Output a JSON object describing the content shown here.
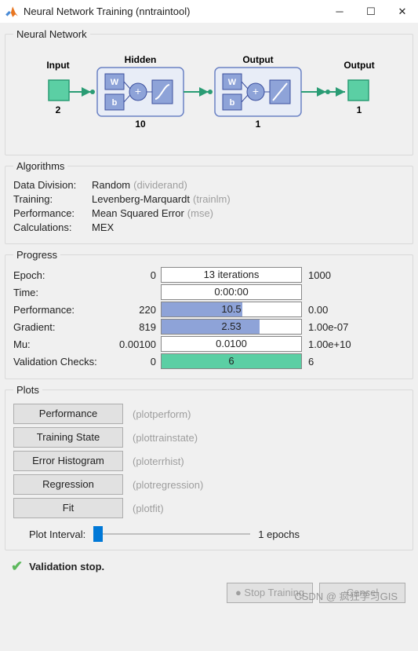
{
  "window": {
    "title": "Neural Network Training (nntraintool)"
  },
  "network": {
    "legend": "Neural Network",
    "input_label": "Input",
    "input_size": "2",
    "hidden_label": "Hidden",
    "hidden_size": "10",
    "output_layer_label": "Output",
    "output_layer_size": "1",
    "output_label": "Output",
    "output_size": "1",
    "w_label": "W",
    "b_label": "b",
    "colors": {
      "box_fill": "#e8edf7",
      "box_stroke": "#6b82c4",
      "block_fill": "#8ea3d8",
      "block_stroke": "#3b4f9e",
      "input_fill": "#5bcfa4",
      "input_stroke": "#2a9c74",
      "arrow": "#2a9c74"
    }
  },
  "algorithms": {
    "legend": "Algorithms",
    "rows": [
      {
        "label": "Data Division:",
        "value": "Random",
        "hint": "(dividerand)"
      },
      {
        "label": "Training:",
        "value": "Levenberg-Marquardt",
        "hint": "(trainlm)"
      },
      {
        "label": "Performance:",
        "value": "Mean Squared Error",
        "hint": "(mse)"
      },
      {
        "label": "Calculations:",
        "value": "MEX",
        "hint": ""
      }
    ]
  },
  "progress": {
    "legend": "Progress",
    "rows": [
      {
        "label": "Epoch:",
        "min": "0",
        "text": "13 iterations",
        "max": "1000",
        "fill_pct": 0,
        "fill_color": "#8ea3d8"
      },
      {
        "label": "Time:",
        "min": "",
        "text": "0:00:00",
        "max": "",
        "fill_pct": 0,
        "fill_color": "#8ea3d8"
      },
      {
        "label": "Performance:",
        "min": "220",
        "text": "10.5",
        "max": "0.00",
        "fill_pct": 58,
        "fill_color": "#8ea3d8"
      },
      {
        "label": "Gradient:",
        "min": "819",
        "text": "2.53",
        "max": "1.00e-07",
        "fill_pct": 70,
        "fill_color": "#8ea3d8"
      },
      {
        "label": "Mu:",
        "min": "0.00100",
        "text": "0.0100",
        "max": "1.00e+10",
        "fill_pct": 0,
        "fill_color": "#8ea3d8"
      },
      {
        "label": "Validation Checks:",
        "min": "0",
        "text": "6",
        "max": "6",
        "fill_pct": 100,
        "fill_color": "#5bcfa4"
      }
    ]
  },
  "plots": {
    "legend": "Plots",
    "buttons": [
      {
        "label": "Performance",
        "hint": "(plotperform)"
      },
      {
        "label": "Training State",
        "hint": "(plottrainstate)"
      },
      {
        "label": "Error Histogram",
        "hint": "(ploterrhist)"
      },
      {
        "label": "Regression",
        "hint": "(plotregression)"
      },
      {
        "label": "Fit",
        "hint": "(plotfit)"
      }
    ],
    "interval_label": "Plot Interval:",
    "interval_value": "1 epochs"
  },
  "status": {
    "text": "Validation stop."
  },
  "buttons": {
    "stop": "Stop Training",
    "cancel": "Cancel"
  },
  "watermark": "CSDN @ 疯狂学习GIS"
}
